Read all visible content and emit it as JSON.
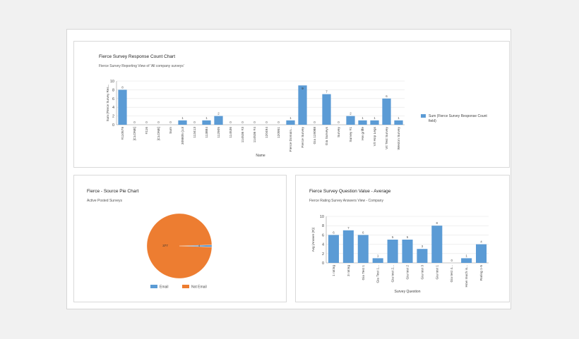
{
  "colors": {
    "bar": "#5b9bd5",
    "pie_email": "#5b9bd5",
    "pie_not_email": "#ed7d31",
    "grid": "#e6e6e6",
    "axis": "#999999",
    "label": "#444444"
  },
  "charts": {
    "response": {
      "title": "Fierce Survey Response Count Chart",
      "subtitle": "Fierce Survey Reporting View of 'All company surveys'"
    },
    "pie": {
      "title": "Fierce - Source Pie Chart",
      "subtitle": "Active Posted Surveys"
    },
    "question": {
      "title": "Fierce Survey Question Value - Average",
      "subtitle": "Fierce Rating Survey Answers View - Company"
    }
  },
  "chart_data": [
    {
      "type": "bar",
      "title": "Fierce Survey Response Count Chart",
      "subtitle": "Fierce Survey Reporting View of 'All company surveys'",
      "xlabel": "Name",
      "ylabel": "Sum (Fierce Survey Res...",
      "ylim": [
        0,
        10
      ],
      "yticks": [
        0,
        2,
        4,
        6,
        8,
        10
      ],
      "grid": true,
      "legend_position": "right",
      "categories": [
        "#110579",
        "[CLONE]",
        "#116",
        "[CLONE]",
        "Sum",
        "309805 (col",
        "113413",
        "113884",
        "112905",
        "114536",
        "114536 #3",
        "114536 #4",
        "120494",
        "120951",
        "Fierce Domain...",
        "Fierce Survey",
        "Gia 119088",
        "Gia Surveys",
        "Survey",
        "Survey #1",
        "Hw griffe",
        "Vit Hop Legs",
        "Vit Test Survey",
        "Weston Survey"
      ],
      "series": [
        {
          "name": "Sum (Fierce Survey Response Count field)",
          "values": [
            8,
            0,
            0,
            0,
            0,
            1,
            0,
            1,
            2,
            0,
            0,
            0,
            0,
            0,
            1,
            9,
            0,
            7,
            0,
            2,
            1,
            1,
            6,
            1
          ]
        }
      ]
    },
    {
      "type": "pie",
      "title": "Fierce - Source Pie Chart",
      "subtitle": "Active Posted Surveys",
      "legend_position": "bottom",
      "categories": [
        "Email",
        "Not Email"
      ],
      "values": [
        4,
        377
      ],
      "data_labels": [
        "4",
        "377"
      ]
    },
    {
      "type": "bar",
      "title": "Fierce Survey Question Value - Average",
      "subtitle": "Fierce Rating Survey Answers View - Company",
      "xlabel": "Survey Question",
      "ylabel": "Avg (Answer (R))",
      "ylim": [
        0,
        10
      ],
      "yticks": [
        0,
        2,
        4,
        6,
        8,
        10
      ],
      "grid": true,
      "categories": [
        "1 rating",
        "3 rating",
        "Gia Test 1",
        "Gia Test 1...",
        "Gia test 2...",
        "Gia test 2",
        "Gia test 3",
        "Gia test 1",
        "Gia test 4...",
        "How much is...",
        "Rating 1-5"
      ],
      "series": [
        {
          "values": [
            6,
            7,
            6,
            1,
            5,
            5,
            3,
            8,
            0,
            1,
            4
          ]
        }
      ]
    }
  ]
}
